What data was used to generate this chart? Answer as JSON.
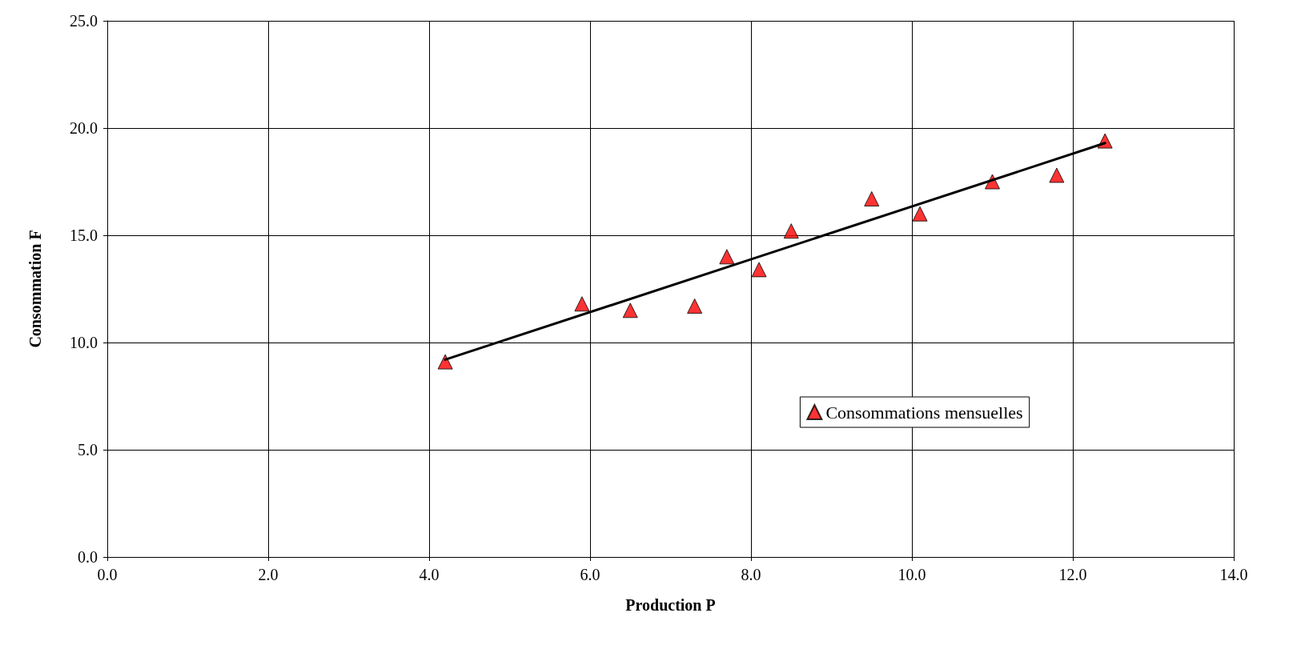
{
  "chart_data": {
    "type": "scatter",
    "xlabel": "Production P",
    "ylabel": "Consommation F",
    "x": [
      4.2,
      5.9,
      6.5,
      7.3,
      7.7,
      8.1,
      8.5,
      9.5,
      10.1,
      11.0,
      11.8,
      12.4
    ],
    "series": [
      {
        "name": "Consommations mensuelles",
        "color": "#ff0000",
        "marker": "triangle",
        "values": [
          9.1,
          11.8,
          11.5,
          11.7,
          14.0,
          13.4,
          15.2,
          16.7,
          16.0,
          17.5,
          17.8,
          19.4
        ]
      },
      {
        "type": "line",
        "color": "#000000",
        "marker": "none",
        "line_style": "solid",
        "x": [
          4.2,
          12.4
        ],
        "values": [
          9.2,
          19.3
        ]
      }
    ],
    "xlim": [
      0,
      14
    ],
    "ylim": [
      0,
      25
    ],
    "xticks": [
      {
        "value": 0,
        "label": "0.0"
      },
      {
        "value": 2,
        "label": "2.0"
      },
      {
        "value": 4,
        "label": "4.0"
      },
      {
        "value": 6,
        "label": "6.0"
      },
      {
        "value": 8,
        "label": "8.0"
      },
      {
        "value": 10,
        "label": "10.0"
      },
      {
        "value": 12,
        "label": "12.0"
      },
      {
        "value": 14,
        "label": "14.0"
      }
    ],
    "yticks": [
      {
        "value": 0,
        "label": "0.0"
      },
      {
        "value": 5,
        "label": "5.0"
      },
      {
        "value": 10,
        "label": "10.0"
      },
      {
        "value": 15,
        "label": "15.0"
      },
      {
        "value": 20,
        "label": "20.0"
      },
      {
        "value": 25,
        "label": "25.0"
      }
    ],
    "grid": true,
    "legend": "right"
  }
}
